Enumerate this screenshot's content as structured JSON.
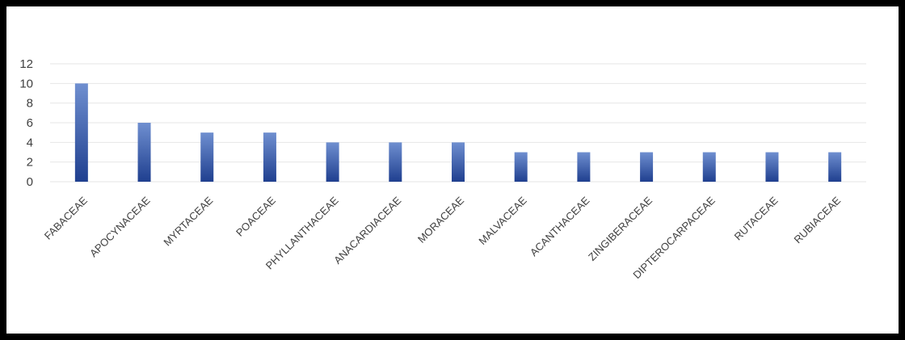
{
  "chart_data": {
    "type": "bar",
    "title": "",
    "xlabel": "",
    "ylabel": "",
    "categories": [
      "FABACEAE",
      "APOCYNACEAE",
      "MYRTACEAE",
      "POACEAE",
      "PHYLLANTHACEAE",
      "ANACARDIACEAE",
      "MORACEAE",
      "MALVACEAE",
      "ACANTHACEAE",
      "ZINGIBERACEAE",
      "DIPTEROCARPACEAE",
      "RUTACEAE",
      "RUBIACEAE"
    ],
    "values": [
      10,
      6,
      5,
      5,
      4,
      4,
      4,
      3,
      3,
      3,
      3,
      3,
      3
    ],
    "ylim": [
      0,
      12
    ],
    "yticks": [
      0,
      2,
      4,
      6,
      8,
      10,
      12
    ],
    "grid": true,
    "legend": "none",
    "colors": {
      "bar_top": "#6f8fd0",
      "bar_bottom": "#1f3f8f",
      "grid": "#e6e6e6",
      "text": "#404040",
      "border": "#000000"
    }
  }
}
